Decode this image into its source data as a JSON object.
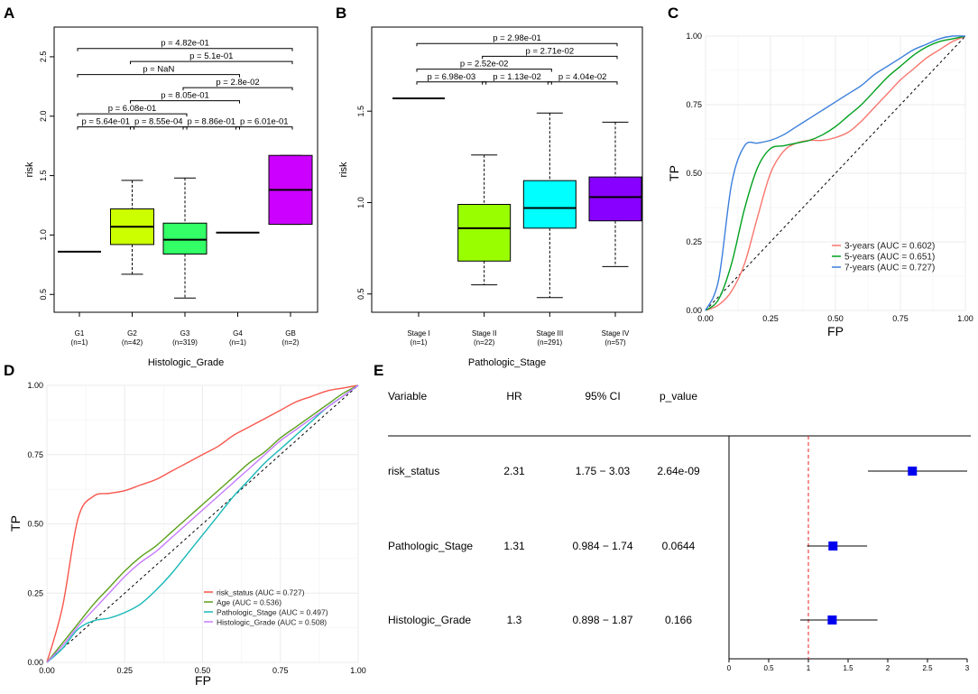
{
  "panels": {
    "A": {
      "label": "A",
      "chart_data": {
        "type": "boxplot",
        "xlabel": "Histologic_Grade",
        "ylabel": "risk",
        "ylim": [
          0.35,
          2.75
        ],
        "yticks": [
          0.5,
          1.0,
          1.5,
          2.0,
          2.5
        ],
        "ytick_labels": [
          "0.5",
          "1.0",
          "1.5",
          "2.0",
          "2.5"
        ],
        "groups": [
          {
            "name": "G1",
            "n_label": "(n=1)",
            "min": 0.86,
            "q1": 0.86,
            "median": 0.86,
            "q3": 0.86,
            "max": 0.86,
            "color": ""
          },
          {
            "name": "G2",
            "n_label": "(n=42)",
            "min": 0.67,
            "q1": 0.92,
            "median": 1.07,
            "q3": 1.22,
            "max": 1.46,
            "color": "#ccff00"
          },
          {
            "name": "G3",
            "n_label": "(n=319)",
            "min": 0.47,
            "q1": 0.84,
            "median": 0.96,
            "q3": 1.1,
            "max": 1.48,
            "color": "#33ff66"
          },
          {
            "name": "G4",
            "n_label": "(n=1)",
            "min": 1.02,
            "q1": 1.02,
            "median": 1.02,
            "q3": 1.02,
            "max": 1.02,
            "color": ""
          },
          {
            "name": "GB",
            "n_label": "(n=2)",
            "min": 1.09,
            "q1": 1.09,
            "median": 1.38,
            "q3": 1.67,
            "max": 1.67,
            "color": "#cc00ff"
          }
        ],
        "comparisons": [
          {
            "from": 0,
            "to": 4,
            "y": 2.57,
            "label": "p = 4.82e-01"
          },
          {
            "from": 1,
            "to": 4,
            "y": 2.46,
            "label": "p = 5.1e-01"
          },
          {
            "from": 0,
            "to": 3,
            "y": 2.35,
            "label": "p = NaN"
          },
          {
            "from": 2,
            "to": 4,
            "y": 2.24,
            "label": "p = 2.8e-02"
          },
          {
            "from": 1,
            "to": 3,
            "y": 2.13,
            "label": "p = 8.05e-01"
          },
          {
            "from": 0,
            "to": 2,
            "y": 2.02,
            "label": "p = 6.08e-01"
          },
          {
            "from": 0,
            "to": 1,
            "y": 1.91,
            "label": "p = 5.64e-01"
          },
          {
            "from": 1,
            "to": 2,
            "y": 1.91,
            "label": "p = 8.55e-04"
          },
          {
            "from": 2,
            "to": 3,
            "y": 1.91,
            "label": "p = 8.86e-01"
          },
          {
            "from": 3,
            "to": 4,
            "y": 1.91,
            "label": "p = 6.01e-01"
          }
        ]
      }
    },
    "B": {
      "label": "B",
      "chart_data": {
        "type": "boxplot",
        "xlabel": "Pathologic_Stage",
        "ylabel": "risk",
        "ylim": [
          0.4,
          1.96
        ],
        "yticks": [
          0.5,
          1.0,
          1.5
        ],
        "ytick_labels": [
          "0.5",
          "1.0",
          "1.5"
        ],
        "groups": [
          {
            "name": "Stage I",
            "n_label": "(n=1)",
            "min": 1.57,
            "q1": 1.57,
            "median": 1.57,
            "q3": 1.57,
            "max": 1.57,
            "color": ""
          },
          {
            "name": "Stage II",
            "n_label": "(n=22)",
            "min": 0.55,
            "q1": 0.68,
            "median": 0.86,
            "q3": 0.99,
            "max": 1.26,
            "color": "#99ff00"
          },
          {
            "name": "Stage III",
            "n_label": "(n=291)",
            "min": 0.48,
            "q1": 0.86,
            "median": 0.97,
            "q3": 1.12,
            "max": 1.49,
            "color": "#00ffff"
          },
          {
            "name": "Stage IV",
            "n_label": "(n=57)",
            "min": 0.65,
            "q1": 0.9,
            "median": 1.03,
            "q3": 1.14,
            "max": 1.44,
            "color": "#8800ff"
          }
        ],
        "comparisons": [
          {
            "from": 0,
            "to": 3,
            "y": 1.87,
            "label": "p = 2.98e-01"
          },
          {
            "from": 1,
            "to": 3,
            "y": 1.8,
            "label": "p = 2.71e-02"
          },
          {
            "from": 0,
            "to": 2,
            "y": 1.73,
            "label": "p = 2.52e-02"
          },
          {
            "from": 0,
            "to": 1,
            "y": 1.66,
            "label": "p = 6.98e-03"
          },
          {
            "from": 1,
            "to": 2,
            "y": 1.66,
            "label": "p = 1.13e-02"
          },
          {
            "from": 2,
            "to": 3,
            "y": 1.66,
            "label": "p = 4.04e-02"
          }
        ]
      }
    },
    "C": {
      "label": "C",
      "chart_data": {
        "type": "line",
        "title": "",
        "xlabel": "FP",
        "ylabel": "TP",
        "xlim": [
          0,
          1
        ],
        "ylim": [
          0,
          1
        ],
        "ticks": [
          0,
          0.25,
          0.5,
          0.75,
          1.0
        ],
        "tick_labels": [
          "0.00",
          "0.25",
          "0.50",
          "0.75",
          "1.00"
        ],
        "legend_position": "bottom-right",
        "series": [
          {
            "name": "3-years (AUC = 0.602)",
            "color": "#f8766d",
            "x": [
              0,
              0.05,
              0.1,
              0.15,
              0.2,
              0.25,
              0.3,
              0.35,
              0.4,
              0.45,
              0.5,
              0.55,
              0.6,
              0.65,
              0.7,
              0.75,
              0.8,
              0.85,
              0.9,
              0.95,
              1.0
            ],
            "y": [
              0,
              0.02,
              0.07,
              0.17,
              0.34,
              0.5,
              0.58,
              0.61,
              0.62,
              0.62,
              0.63,
              0.65,
              0.69,
              0.74,
              0.79,
              0.84,
              0.88,
              0.92,
              0.95,
              0.98,
              1.0
            ]
          },
          {
            "name": "5-years (AUC = 0.651)",
            "color": "#00a01e",
            "x": [
              0,
              0.05,
              0.1,
              0.15,
              0.2,
              0.25,
              0.3,
              0.35,
              0.4,
              0.45,
              0.5,
              0.55,
              0.6,
              0.65,
              0.7,
              0.75,
              0.8,
              0.85,
              0.9,
              0.95,
              1.0
            ],
            "y": [
              0,
              0.04,
              0.17,
              0.37,
              0.52,
              0.59,
              0.6,
              0.61,
              0.62,
              0.64,
              0.67,
              0.71,
              0.75,
              0.8,
              0.85,
              0.89,
              0.93,
              0.96,
              0.98,
              0.99,
              1.0
            ]
          },
          {
            "name": "7-years (AUC = 0.727)",
            "color": "#3b7fdb",
            "x": [
              0,
              0.05,
              0.1,
              0.15,
              0.2,
              0.25,
              0.3,
              0.35,
              0.4,
              0.45,
              0.5,
              0.55,
              0.6,
              0.65,
              0.7,
              0.75,
              0.8,
              0.85,
              0.9,
              0.95,
              1.0
            ],
            "y": [
              0,
              0.11,
              0.46,
              0.6,
              0.61,
              0.62,
              0.64,
              0.67,
              0.7,
              0.73,
              0.76,
              0.79,
              0.82,
              0.86,
              0.89,
              0.92,
              0.95,
              0.97,
              0.99,
              1.0,
              1.0
            ]
          }
        ]
      }
    },
    "D": {
      "label": "D",
      "chart_data": {
        "type": "line",
        "title": "",
        "xlabel": "FP",
        "ylabel": "TP",
        "xlim": [
          0,
          1
        ],
        "ylim": [
          0,
          1
        ],
        "ticks": [
          0,
          0.25,
          0.5,
          0.75,
          1.0
        ],
        "tick_labels": [
          "0.00",
          "0.25",
          "0.50",
          "0.75",
          "1.00"
        ],
        "legend_position": "bottom-right",
        "series": [
          {
            "name": "risk_status (AUC = 0.727)",
            "color": "#f8564d",
            "x": [
              0,
              0.05,
              0.1,
              0.15,
              0.2,
              0.25,
              0.3,
              0.35,
              0.4,
              0.45,
              0.5,
              0.55,
              0.6,
              0.65,
              0.7,
              0.75,
              0.8,
              0.85,
              0.9,
              0.95,
              1.0
            ],
            "y": [
              0,
              0.2,
              0.52,
              0.6,
              0.61,
              0.62,
              0.64,
              0.66,
              0.69,
              0.72,
              0.75,
              0.78,
              0.82,
              0.85,
              0.88,
              0.91,
              0.94,
              0.96,
              0.98,
              0.99,
              1.0
            ]
          },
          {
            "name": "Age (AUC = 0.536)",
            "color": "#5aa11a",
            "x": [
              0,
              0.05,
              0.1,
              0.15,
              0.2,
              0.25,
              0.3,
              0.35,
              0.4,
              0.45,
              0.5,
              0.55,
              0.6,
              0.65,
              0.7,
              0.75,
              0.8,
              0.85,
              0.9,
              0.95,
              1.0
            ],
            "y": [
              0,
              0.07,
              0.14,
              0.21,
              0.27,
              0.33,
              0.38,
              0.42,
              0.47,
              0.52,
              0.57,
              0.62,
              0.67,
              0.72,
              0.76,
              0.81,
              0.85,
              0.89,
              0.93,
              0.97,
              1.0
            ]
          },
          {
            "name": "Pathologic_Stage (AUC = 0.497)",
            "color": "#19b8b8",
            "x": [
              0,
              0.05,
              0.1,
              0.15,
              0.2,
              0.25,
              0.3,
              0.35,
              0.4,
              0.45,
              0.5,
              0.55,
              0.6,
              0.65,
              0.7,
              0.75,
              0.8,
              0.85,
              0.9,
              0.95,
              1.0
            ],
            "y": [
              0,
              0.05,
              0.12,
              0.15,
              0.16,
              0.18,
              0.21,
              0.26,
              0.32,
              0.39,
              0.46,
              0.53,
              0.6,
              0.66,
              0.72,
              0.77,
              0.82,
              0.87,
              0.92,
              0.96,
              1.0
            ]
          },
          {
            "name": "Histologic_Grade (AUC = 0.508)",
            "color": "#c77cff",
            "x": [
              0,
              0.05,
              0.1,
              0.15,
              0.2,
              0.25,
              0.3,
              0.35,
              0.4,
              0.45,
              0.5,
              0.55,
              0.6,
              0.65,
              0.7,
              0.75,
              0.8,
              0.85,
              0.9,
              0.95,
              1.0
            ],
            "y": [
              0,
              0.06,
              0.13,
              0.19,
              0.25,
              0.31,
              0.36,
              0.4,
              0.45,
              0.5,
              0.55,
              0.6,
              0.65,
              0.7,
              0.75,
              0.8,
              0.84,
              0.88,
              0.92,
              0.96,
              1.0
            ]
          }
        ]
      }
    },
    "E": {
      "label": "E",
      "table": {
        "headers": [
          "Variable",
          "HR",
          "95% CI",
          "p_value"
        ],
        "rows": [
          {
            "variable": "risk_status",
            "hr": "2.31",
            "ci": "1.75 − 3.03",
            "p": "2.64e-09"
          },
          {
            "variable": "Pathologic_Stage",
            "hr": "1.31",
            "ci": "0.984 − 1.74",
            "p": "0.0644"
          },
          {
            "variable": "Histologic_Grade",
            "hr": "1.3",
            "ci": "0.898 − 1.87",
            "p": "0.166"
          }
        ]
      },
      "chart_data": {
        "type": "forest",
        "xlim": [
          0,
          3
        ],
        "xticks": [
          0,
          0.5,
          1,
          1.5,
          2,
          2.5,
          3
        ],
        "xtick_labels": [
          "0",
          "0.5",
          "1",
          "1.5",
          "2",
          "2.5",
          "3"
        ],
        "reference": 1,
        "point_color": "#0000ee",
        "ref_color": "#ee2222",
        "rows": [
          {
            "name": "risk_status",
            "hr": 2.31,
            "lo": 1.75,
            "hi": 3.03
          },
          {
            "name": "Pathologic_Stage",
            "hr": 1.31,
            "lo": 0.984,
            "hi": 1.74
          },
          {
            "name": "Histologic_Grade",
            "hr": 1.3,
            "lo": 0.898,
            "hi": 1.87
          }
        ]
      }
    }
  }
}
